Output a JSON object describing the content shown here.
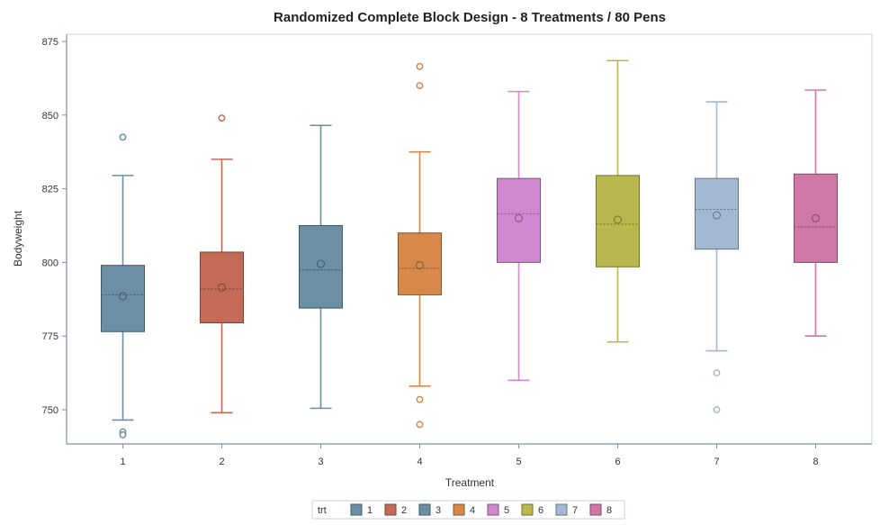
{
  "chart_data": {
    "type": "box",
    "title": "Randomized Complete Block Design - 8 Treatments / 80 Pens",
    "xlabel": "Treatment",
    "ylabel": "Bodyweight",
    "ylim": [
      739,
      877
    ],
    "yticks": [
      750,
      775,
      800,
      825,
      850,
      875
    ],
    "legend_title": "trt",
    "legend_position": "bottom",
    "categories": [
      "1",
      "2",
      "3",
      "4",
      "5",
      "6",
      "7",
      "8"
    ],
    "series": [
      {
        "name": "1",
        "color": "#6d8fa5",
        "min": 746.5,
        "q1": 776.5,
        "median": 789,
        "mean": 788.5,
        "q3": 799,
        "max": 829.5,
        "outliers": [
          742.5,
          741.5,
          842.5
        ]
      },
      {
        "name": "2",
        "color": "#c46b55",
        "min": 749,
        "q1": 779.5,
        "median": 791,
        "mean": 791.5,
        "q3": 803.5,
        "max": 835,
        "outliers": [
          849
        ]
      },
      {
        "name": "3",
        "color": "#6b8fa3",
        "min": 750.5,
        "q1": 784.5,
        "median": 797.5,
        "mean": 799.5,
        "q3": 812.5,
        "max": 846.5,
        "outliers": []
      },
      {
        "name": "4",
        "color": "#d6894a",
        "min": 758,
        "q1": 789,
        "median": 798,
        "mean": 799,
        "q3": 810,
        "max": 837.5,
        "outliers": [
          753.5,
          745,
          860,
          866.5
        ]
      },
      {
        "name": "5",
        "color": "#d089d0",
        "min": 760,
        "q1": 800,
        "median": 816.5,
        "mean": 815,
        "q3": 828.5,
        "max": 858,
        "outliers": []
      },
      {
        "name": "6",
        "color": "#b8b84f",
        "min": 773,
        "q1": 798.5,
        "median": 813,
        "mean": 814.5,
        "q3": 829.5,
        "max": 868.5,
        "outliers": []
      },
      {
        "name": "7",
        "color": "#a3b9d1",
        "min": 770,
        "q1": 804.5,
        "median": 818,
        "mean": 816,
        "q3": 828.5,
        "max": 854.5,
        "outliers": [
          762.5,
          750
        ]
      },
      {
        "name": "8",
        "color": "#cf78a8",
        "min": 775,
        "q1": 800,
        "median": 812,
        "mean": 815,
        "q3": 830,
        "max": 858.5,
        "outliers": []
      }
    ]
  }
}
